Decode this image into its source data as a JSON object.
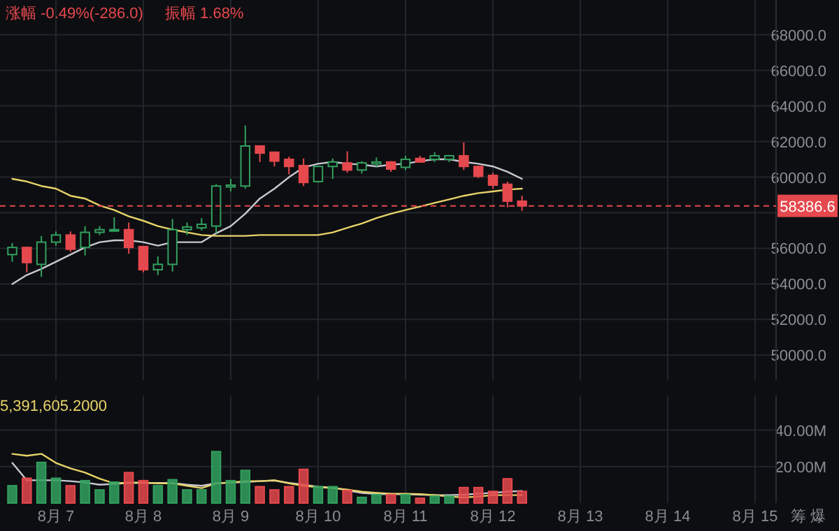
{
  "chart_data": [
    {
      "type": "candlestick",
      "categories": [
        null,
        null,
        null,
        null,
        null,
        null,
        null,
        null,
        null,
        null,
        null,
        null,
        null,
        null,
        null,
        null,
        null,
        null,
        null,
        null,
        null,
        null,
        null,
        null,
        null,
        null,
        null,
        null,
        null,
        null,
        null,
        null,
        null,
        null,
        null,
        null,
        null,
        null,
        null,
        null,
        null,
        null,
        null,
        null,
        null,
        null,
        null,
        null,
        null,
        null,
        null,
        null,
        null
      ],
      "ohlc": [
        [
          55650,
          56300,
          55250,
          56050
        ],
        [
          56050,
          56050,
          54650,
          55200
        ],
        [
          55100,
          56700,
          54400,
          56350
        ],
        [
          56350,
          56950,
          56150,
          56750
        ],
        [
          56750,
          56950,
          55800,
          55950
        ],
        [
          56050,
          57250,
          55600,
          56900
        ],
        [
          56900,
          57250,
          56750,
          57050
        ],
        [
          57000,
          57750,
          56950,
          57050
        ],
        [
          57050,
          57450,
          55700,
          56050
        ],
        [
          56100,
          56100,
          54650,
          54800
        ],
        [
          54800,
          55550,
          54500,
          55100
        ],
        [
          55100,
          57650,
          54700,
          57050
        ],
        [
          57050,
          57450,
          56750,
          57200
        ],
        [
          57150,
          57700,
          57000,
          57350
        ],
        [
          57250,
          59600,
          56850,
          59500
        ],
        [
          59450,
          59900,
          59200,
          59550
        ],
        [
          59500,
          62900,
          59350,
          61750
        ],
        [
          61750,
          61750,
          60850,
          61350
        ],
        [
          61400,
          61400,
          60600,
          60900
        ],
        [
          61000,
          61150,
          60150,
          60600
        ],
        [
          60650,
          61050,
          59500,
          59700
        ],
        [
          59750,
          60650,
          59700,
          60600
        ],
        [
          60600,
          61050,
          59900,
          60850
        ],
        [
          60800,
          61450,
          60250,
          60400
        ],
        [
          60400,
          60900,
          60200,
          60800
        ],
        [
          60750,
          61100,
          60550,
          60850
        ],
        [
          60850,
          60900,
          60300,
          60450
        ],
        [
          60550,
          61200,
          60400,
          61000
        ],
        [
          61050,
          61200,
          60800,
          60850
        ],
        [
          61000,
          61400,
          60850,
          61200
        ],
        [
          61000,
          61250,
          60850,
          61200
        ],
        [
          61200,
          61950,
          60400,
          60600
        ],
        [
          60600,
          60650,
          59950,
          60050
        ],
        [
          60100,
          60250,
          59350,
          59550
        ],
        [
          59600,
          59750,
          58300,
          58650
        ],
        [
          58650,
          58950,
          58100,
          58386.6
        ],
        null,
        null,
        null,
        null,
        null,
        null,
        null,
        null,
        null,
        null,
        null,
        null,
        null,
        null,
        null,
        null,
        null
      ],
      "colors": [
        "#32a05f",
        "#e5484d",
        "#32a05f",
        "#32a05f",
        "#e5484d",
        "#32a05f",
        "#32a05f",
        "#32a05f",
        "#e5484d",
        "#e5484d",
        "#32a05f",
        "#32a05f",
        "#32a05f",
        "#32a05f",
        "#32a05f",
        "#32a05f",
        "#32a05f",
        "#e5484d",
        "#e5484d",
        "#e5484d",
        "#e5484d",
        "#32a05f",
        "#32a05f",
        "#e5484d",
        "#32a05f",
        "#32a05f",
        "#e5484d",
        "#32a05f",
        "#e5484d",
        "#32a05f",
        "#32a05f",
        "#e5484d",
        "#e5484d",
        "#e5484d",
        "#e5484d",
        "#e5484d",
        null,
        null,
        null,
        null,
        null,
        null,
        null,
        null,
        null,
        null,
        null,
        null,
        null,
        null,
        null,
        null,
        null
      ],
      "series": [
        {
          "type": "line",
          "color": "#c8c8d0",
          "values": [
            54000,
            54500,
            54850,
            55250,
            55650,
            56050,
            56350,
            56450,
            56450,
            56350,
            56150,
            56350,
            56350,
            56350,
            56850,
            57250,
            57950,
            58800,
            59350,
            60000,
            60550,
            60750,
            60850,
            60750,
            60700,
            60600,
            60700,
            60750,
            60900,
            61000,
            61000,
            60850,
            60750,
            60600,
            60300,
            59900,
            null,
            null,
            null,
            null,
            null,
            null,
            null,
            null,
            null,
            null,
            null,
            null,
            null,
            null,
            null,
            null,
            null
          ]
        },
        {
          "type": "line",
          "color": "#e8d36a",
          "values": [
            59900,
            59750,
            59500,
            59350,
            58950,
            58800,
            58400,
            58150,
            57800,
            57550,
            57250,
            57050,
            56900,
            56750,
            56700,
            56700,
            56700,
            56750,
            56750,
            56750,
            56750,
            56750,
            56900,
            57150,
            57400,
            57700,
            57950,
            58150,
            58350,
            58550,
            58750,
            58950,
            59100,
            59200,
            59300,
            59350,
            null,
            null,
            null,
            null,
            null,
            null,
            null,
            null,
            null,
            null,
            null,
            null,
            null,
            null,
            null,
            null,
            null
          ]
        }
      ],
      "ylim": [
        48600,
        69950
      ],
      "yticks": [
        {
          "value": 50000,
          "label": "50000.0"
        },
        {
          "value": 52000,
          "label": "52000.0"
        },
        {
          "value": 54000,
          "label": "54000.0"
        },
        {
          "value": 56000,
          "label": "56000.0"
        },
        {
          "value": 58000,
          "label": null
        },
        {
          "value": 60000,
          "label": "60000.0"
        },
        {
          "value": 62000,
          "label": "62000.0"
        },
        {
          "value": 64000,
          "label": "64000.0"
        },
        {
          "value": 66000,
          "label": "66000.0"
        },
        {
          "value": 68000,
          "label": "68000.0"
        }
      ],
      "grid": true,
      "tick_labels": "y",
      "ref_lines": [
        {
          "axis": "y",
          "value": 58386.6,
          "label": "58386.6",
          "color": "#e5484d",
          "line_style": "dashed"
        }
      ],
      "annotations": [
        "涨幅 -0.49%(-286.0)",
        "振幅 1.68%"
      ]
    },
    {
      "type": "bar",
      "categories": [
        null,
        null,
        null,
        "8月 7",
        null,
        null,
        null,
        null,
        null,
        "8月 8",
        null,
        null,
        null,
        null,
        null,
        "8月 9",
        null,
        null,
        null,
        null,
        null,
        "8月 10",
        null,
        null,
        null,
        null,
        null,
        "8月 11",
        null,
        null,
        null,
        null,
        null,
        "8月 12",
        null,
        null,
        null,
        null,
        null,
        "8月 13",
        null,
        null,
        null,
        null,
        null,
        "8月 14",
        null,
        null,
        null,
        null,
        null,
        "8月 15",
        null
      ],
      "values": [
        9.5,
        13.6,
        22.3,
        13.6,
        9.5,
        12.3,
        7.2,
        11.5,
        16.7,
        12.3,
        9.5,
        12.8,
        7.2,
        7.2,
        28.2,
        12.3,
        17.9,
        9,
        7.2,
        9,
        18.5,
        9,
        9,
        6.9,
        3.1,
        4.6,
        4.6,
        4.6,
        2.6,
        3.8,
        3.8,
        8.5,
        8.5,
        6.4,
        13.3,
        6.4,
        null,
        null,
        null,
        null,
        null,
        null,
        null,
        null,
        null,
        null,
        null,
        null,
        null,
        null,
        null,
        null,
        null
      ],
      "colors": [
        "#32a05f",
        "#e5484d",
        "#32a05f",
        "#32a05f",
        "#e5484d",
        "#32a05f",
        "#32a05f",
        "#32a05f",
        "#e5484d",
        "#e5484d",
        "#32a05f",
        "#32a05f",
        "#32a05f",
        "#32a05f",
        "#32a05f",
        "#32a05f",
        "#32a05f",
        "#e5484d",
        "#e5484d",
        "#e5484d",
        "#e5484d",
        "#32a05f",
        "#32a05f",
        "#e5484d",
        "#32a05f",
        "#32a05f",
        "#e5484d",
        "#32a05f",
        "#e5484d",
        "#32a05f",
        "#32a05f",
        "#e5484d",
        "#e5484d",
        "#e5484d",
        "#e5484d",
        "#e5484d",
        null,
        null,
        null,
        null,
        null,
        null,
        null,
        null,
        null,
        null,
        null,
        null,
        null,
        null,
        null,
        null,
        null
      ],
      "series": [
        {
          "type": "line",
          "color": "#c8c8d0",
          "values": [
            22,
            12.5,
            12.5,
            12.5,
            12,
            11.3,
            10,
            10.5,
            11,
            11,
            11,
            11,
            10,
            9.5,
            10.8,
            11.3,
            11.5,
            12,
            12.3,
            11,
            10,
            9,
            8.5,
            7,
            5.5,
            5,
            4.8,
            4.8,
            4.6,
            4.4,
            4.4,
            4.6,
            5.1,
            5.6,
            6.2,
            6.7,
            null,
            null,
            null,
            null,
            null,
            null,
            null,
            null,
            null,
            null,
            null,
            null,
            null,
            null,
            null,
            null,
            null
          ]
        },
        {
          "type": "line",
          "color": "#e8d36a",
          "values": [
            27,
            26,
            27,
            22,
            19,
            16.7,
            13.3,
            10.8,
            11.3,
            11.3,
            10.8,
            10.8,
            9.5,
            8.2,
            10.8,
            11.3,
            12,
            12,
            12.5,
            10.8,
            9.5,
            8.7,
            8.2,
            7.4,
            6.2,
            5.6,
            5.1,
            5.1,
            4.9,
            4.4,
            3.6,
            3.1,
            3.6,
            4.4,
            4.4,
            4.4,
            null,
            null,
            null,
            null,
            null,
            null,
            null,
            null,
            null,
            null,
            null,
            null,
            null,
            null,
            null,
            null,
            null
          ]
        }
      ],
      "ylim": [
        0,
        59
      ],
      "yticks": [
        {
          "value": 20,
          "label": "20.00M"
        },
        {
          "value": 40,
          "label": "40.00M"
        }
      ],
      "grid": true,
      "annotations": [
        "5,391,605.2000",
        "筹 爆"
      ]
    }
  ]
}
